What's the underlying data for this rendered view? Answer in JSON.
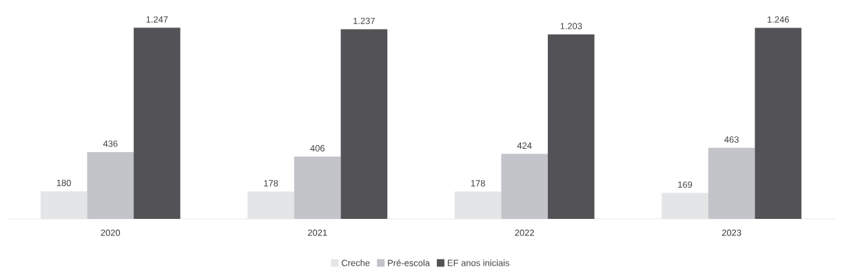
{
  "chart_data": {
    "type": "bar",
    "categories": [
      "2020",
      "2021",
      "2022",
      "2023"
    ],
    "series": [
      {
        "name": "Creche",
        "color": "#e4e5e7",
        "values": [
          180,
          178,
          178,
          169
        ],
        "value_labels": [
          "180",
          "178",
          "178",
          "169"
        ]
      },
      {
        "name": "Pré-escola",
        "color": "#c3c4c9",
        "values": [
          436,
          406,
          424,
          463
        ],
        "value_labels": [
          "436",
          "406",
          "424",
          "463"
        ]
      },
      {
        "name": "EF anos iniciais",
        "color": "#535357",
        "values": [
          1247,
          1237,
          1203,
          1246
        ],
        "value_labels": [
          "1.247",
          "1.237",
          "1.203",
          "1.246"
        ]
      }
    ],
    "legend": "bottom"
  }
}
